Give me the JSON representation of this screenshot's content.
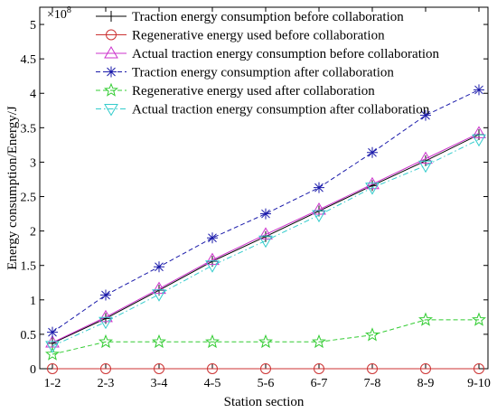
{
  "chart_data": {
    "type": "line",
    "xlabel": "Station section",
    "ylabel": "Energy consumption/Energy/J",
    "y_multiplier": "×10",
    "y_exponent": "8",
    "categories": [
      "1-2",
      "2-3",
      "3-4",
      "4-5",
      "5-6",
      "6-7",
      "7-8",
      "8-9",
      "9-10"
    ],
    "ylim": [
      0,
      5.25
    ],
    "yticks": [
      0,
      0.5,
      1,
      1.5,
      2,
      2.5,
      3,
      3.5,
      4,
      4.5,
      5
    ],
    "ytick_labels": [
      "0",
      "0.5",
      "1",
      "1.5",
      "2",
      "2.5",
      "3",
      "3.5",
      "4",
      "4.5",
      "5"
    ],
    "grid": false,
    "legend_position": "top",
    "series": [
      {
        "name": "Traction energy consumption before collaboration",
        "color": "#000000",
        "dash": "solid",
        "marker": "plus",
        "values": [
          0.37,
          0.73,
          1.14,
          1.56,
          1.92,
          2.29,
          2.66,
          3.02,
          3.4
        ]
      },
      {
        "name": "Regenerative energy used before collaboration",
        "color": "#cc3333",
        "dash": "solid",
        "marker": "circle",
        "values": [
          0,
          0,
          0,
          0,
          0,
          0,
          0,
          0,
          0
        ]
      },
      {
        "name": "Actual traction energy consumption before collaboration",
        "color": "#cc33cc",
        "dash": "solid",
        "marker": "triangle",
        "values": [
          0.38,
          0.75,
          1.16,
          1.58,
          1.95,
          2.31,
          2.68,
          3.05,
          3.42
        ]
      },
      {
        "name": "Traction energy consumption after collaboration",
        "color": "#1a1aaa",
        "dash": "dashed",
        "marker": "asterisk",
        "values": [
          0.53,
          1.07,
          1.48,
          1.9,
          2.25,
          2.63,
          3.14,
          3.68,
          4.05
        ]
      },
      {
        "name": "Regenerative energy used after collaboration",
        "color": "#33cc33",
        "dash": "dashed",
        "marker": "star",
        "values": [
          0.21,
          0.39,
          0.39,
          0.39,
          0.39,
          0.39,
          0.49,
          0.71,
          0.71
        ]
      },
      {
        "name": "Actual traction energy consumption after collaboration",
        "color": "#33cccc",
        "dash": "dashdot",
        "marker": "triangle-down",
        "values": [
          0.33,
          0.68,
          1.08,
          1.5,
          1.86,
          2.23,
          2.63,
          2.95,
          3.33
        ]
      }
    ]
  }
}
